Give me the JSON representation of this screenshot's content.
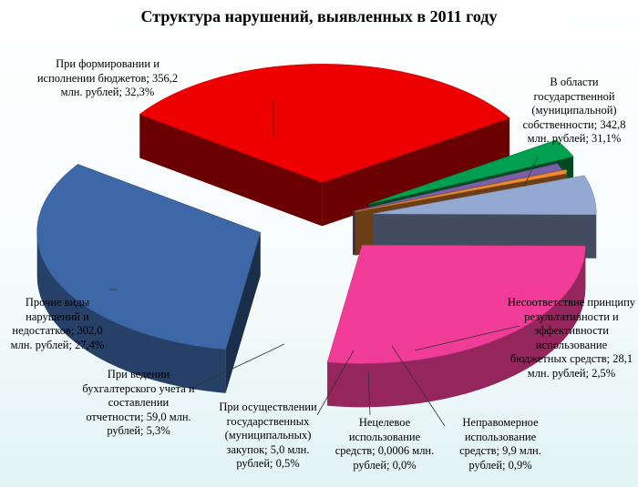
{
  "chart_data": {
    "type": "pie",
    "title": "Структура нарушений, выявленных в 2011 году",
    "slices": [
      {
        "label": "В области государственной (муниципальной) собственности; 342,8 млн. рублей; 31,1%",
        "value": 342.8,
        "percent": 31.1,
        "color": "#ee0000"
      },
      {
        "label": "Несоответствие принципу результативности и эффективности использование бюджетных средств; 28,1 млн. рублей; 2,5%",
        "value": 28.1,
        "percent": 2.5,
        "color": "#00a050"
      },
      {
        "label": "Неправомерное использование средств; 9,9 млн. рублей; 0,9%",
        "value": 9.9,
        "percent": 0.9,
        "color": "#7b5ea8"
      },
      {
        "label": "Нецелевое использование средств; 0,0006 млн. рублей; 0,0%",
        "value": 0.0006,
        "percent": 0.0,
        "color": "#c8b400"
      },
      {
        "label": "При осуществлении государственных (муниципальных) закупок; 5,0 млн. рублей; 0,5%",
        "value": 5.0,
        "percent": 0.5,
        "color": "#f08a30"
      },
      {
        "label": "При ведении бухгалтерского учета и составлении отчетности; 59,0 млн. рублей; 5,3%",
        "value": 59.0,
        "percent": 5.3,
        "color": "#94a9d2"
      },
      {
        "label": "Прочие виды нарушений и недостатков; 302,0 млн. рублей; 27,4%",
        "value": 302.0,
        "percent": 27.4,
        "color": "#f03c96"
      },
      {
        "label": "При формировании и исполнении бюджетов; 356,2 млн. рублей; 32,3%",
        "value": 356.2,
        "percent": 32.3,
        "color": "#3d67a6"
      }
    ]
  }
}
